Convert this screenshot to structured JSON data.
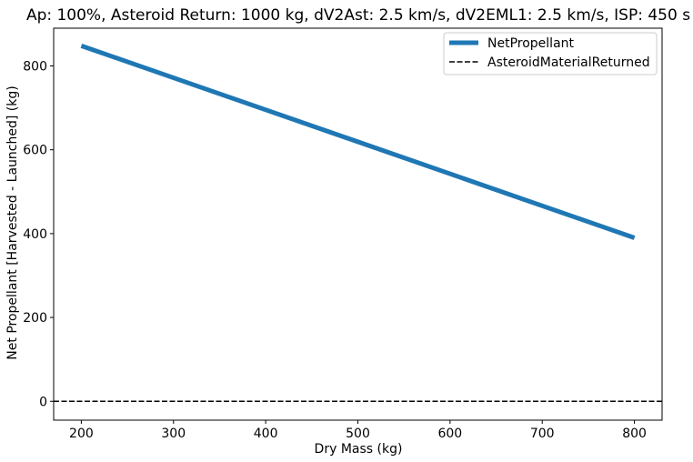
{
  "chart_data": {
    "type": "line",
    "title": "Ap: 100%, Asteroid Return: 1000 kg, dV2Ast: 2.5 km/s, dV2EML1: 2.5 km/s, ISP: 450 s",
    "xlabel": "Dry Mass (kg)",
    "ylabel": "Net Propellant [Harvested - Launched] (kg)",
    "xlim": [
      170,
      830
    ],
    "ylim": [
      -45,
      890
    ],
    "xticks": [
      200,
      300,
      400,
      500,
      600,
      700,
      800
    ],
    "yticks": [
      0,
      200,
      400,
      600,
      800
    ],
    "grid": false,
    "legend_position": "top-right",
    "series": [
      {
        "name": "NetPropellant",
        "style": "solid",
        "color": "#1f77b4",
        "x": [
          200,
          800
        ],
        "y": [
          848,
          390
        ]
      },
      {
        "name": "AsteroidMaterialReturned",
        "style": "dashed",
        "color": "#000000",
        "y": 0
      }
    ]
  }
}
